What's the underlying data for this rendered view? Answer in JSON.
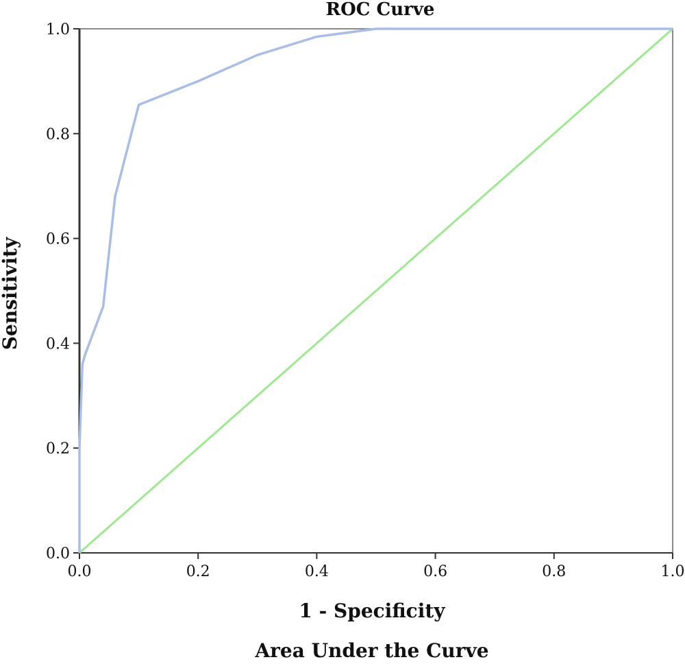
{
  "chart_data": {
    "type": "line",
    "title": "ROC Curve",
    "xlabel": "1 - Specificity",
    "ylabel": "Sensitivity",
    "caption": "Area Under the Curve",
    "xlim": [
      0,
      1
    ],
    "ylim": [
      0,
      1
    ],
    "xticks": [
      "0.0",
      "0.2",
      "0.4",
      "0.6",
      "0.8",
      "1.0"
    ],
    "yticks": [
      "0.0",
      "0.2",
      "0.4",
      "0.6",
      "0.8",
      "1.0"
    ],
    "grid": false,
    "series": [
      {
        "role": "roc-curve",
        "color": "#a9bde6",
        "x": [
          0.0,
          0.0,
          0.005,
          0.01,
          0.04,
          0.06,
          0.1,
          0.2,
          0.3,
          0.4,
          0.5,
          0.55,
          1.0
        ],
        "y": [
          0.0,
          0.2,
          0.36,
          0.38,
          0.47,
          0.68,
          0.855,
          0.9,
          0.95,
          0.985,
          1.0,
          1.0,
          1.0
        ]
      },
      {
        "role": "reference-line",
        "color": "#9ee891",
        "x": [
          0.0,
          1.0
        ],
        "y": [
          0.0,
          1.0
        ]
      }
    ]
  }
}
